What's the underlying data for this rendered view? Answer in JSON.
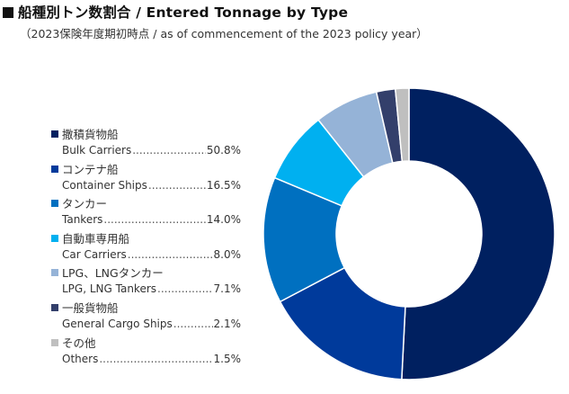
{
  "title": "船種別トン数割合 / Entered Tonnage by Type",
  "subtitle": "（2023保険年度期初時点 / as of commencement of the 2023 policy year）",
  "chart_data": {
    "type": "pie",
    "variant": "donut",
    "title": "船種別トン数割合 / Entered Tonnage by Type",
    "subtitle": "（2023保険年度期初時点 / as of commencement of the 2023 policy year）",
    "unit": "%",
    "legend_position": "left",
    "start_angle_deg": 0,
    "direction": "clockwise",
    "slices": [
      {
        "label_jp": "撒積貨物船",
        "label_en": "Bulk Carriers",
        "value": 50.8,
        "display": "50.8%",
        "color": "#002060"
      },
      {
        "label_jp": "コンテナ船",
        "label_en": "Container Ships",
        "value": 16.5,
        "display": "16.5%",
        "color": "#003A9B"
      },
      {
        "label_jp": "タンカー",
        "label_en": "Tankers",
        "value": 14.0,
        "display": "14.0%",
        "color": "#0070C0"
      },
      {
        "label_jp": "自動車専用船",
        "label_en": "Car Carriers",
        "value": 8.0,
        "display": "8.0%",
        "color": "#00B0F0"
      },
      {
        "label_jp": "LPG、LNGタンカー",
        "label_en": "LPG, LNG Tankers",
        "value": 7.1,
        "display": "7.1%",
        "color": "#95B3D7"
      },
      {
        "label_jp": "一般貨物船",
        "label_en": "General Cargo Ships",
        "value": 2.1,
        "display": "2.1%",
        "color": "#333F6B"
      },
      {
        "label_jp": "その他",
        "label_en": "Others",
        "value": 1.5,
        "display": "1.5%",
        "color": "#BFBFBF"
      }
    ]
  }
}
